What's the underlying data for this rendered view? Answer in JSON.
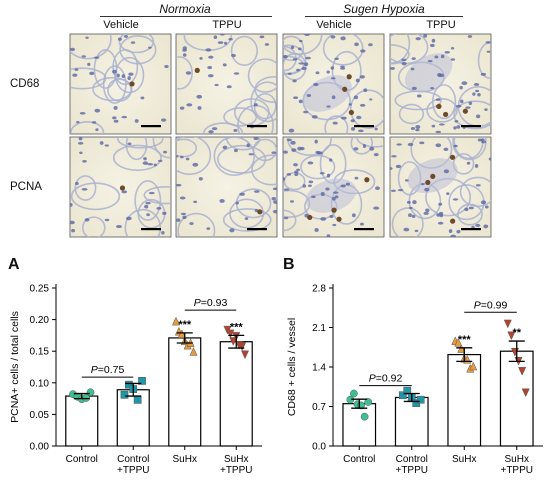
{
  "top": {
    "conditions": [
      "Normoxia",
      "Sugen Hypoxia"
    ],
    "groups": [
      "Vehicle",
      "TPPU",
      "Vehicle",
      "TPPU"
    ],
    "stains": [
      "CD68",
      "PCNA"
    ]
  },
  "chart_data": [
    {
      "panel": "A",
      "type": "bar",
      "categories": [
        "Control",
        "Control\n+TPPU",
        "SuHx",
        "SuHx\n+TPPU"
      ],
      "values": [
        0.079,
        0.089,
        0.171,
        0.165
      ],
      "errors": [
        0.004,
        0.01,
        0.008,
        0.01
      ],
      "points": [
        [
          0.082,
          0.078,
          0.074,
          0.076,
          0.085
        ],
        [
          0.081,
          0.097,
          0.09,
          0.073,
          0.103
        ],
        [
          0.197,
          0.181,
          0.177,
          0.166,
          0.159,
          0.163,
          0.149
        ],
        [
          0.184,
          0.178,
          0.166,
          0.174,
          0.16,
          0.158,
          0.145
        ]
      ],
      "point_colors": [
        "#3dbf95",
        "#1f97a8",
        "#e79a3e",
        "#b5442e"
      ],
      "point_markers": [
        "circle",
        "square",
        "triangle-up",
        "triangle-down"
      ],
      "significance": [
        "",
        "",
        "***",
        "***"
      ],
      "comparisons": [
        {
          "from": 0,
          "to": 1,
          "label": "P=0.75",
          "y": 0.109
        },
        {
          "from": 2,
          "to": 3,
          "label": "P=0.93",
          "y": 0.215
        }
      ],
      "ylabel": "PCNA+ cells / total cells",
      "ylim": [
        0,
        0.25
      ],
      "yticks": [
        "0.00",
        "0.05",
        "0.10",
        "0.15",
        "0.20",
        "0.25"
      ]
    },
    {
      "panel": "B",
      "type": "bar",
      "categories": [
        "Control",
        "Control\n+TPPU",
        "SuHx",
        "SuHx\n+TPPU"
      ],
      "values": [
        0.75,
        0.86,
        1.62,
        1.68
      ],
      "errors": [
        0.08,
        0.07,
        0.12,
        0.18
      ],
      "points": [
        [
          0.82,
          0.93,
          0.74,
          0.72,
          0.52,
          0.78
        ],
        [
          0.9,
          0.98,
          0.86,
          0.76,
          0.82
        ],
        [
          1.86,
          1.83,
          1.72,
          1.55,
          1.53,
          1.37,
          1.41
        ],
        [
          2.17,
          1.96,
          1.67,
          1.51,
          1.33,
          0.95
        ]
      ],
      "point_colors": [
        "#3dbf95",
        "#1f97a8",
        "#e79a3e",
        "#b5442e"
      ],
      "point_markers": [
        "circle",
        "square",
        "triangle-up",
        "triangle-down"
      ],
      "significance": [
        "",
        "",
        "***",
        "**"
      ],
      "comparisons": [
        {
          "from": 0,
          "to": 1,
          "label": "P=0.92",
          "y": 1.07
        },
        {
          "from": 2,
          "to": 3,
          "label": "P=0.99",
          "y": 2.37
        }
      ],
      "ylabel": "CD68 + cells / vessel",
      "ylim": [
        0,
        2.8
      ],
      "yticks": [
        "0.0",
        "0.7",
        "1.4",
        "2.1",
        "2.8"
      ]
    }
  ]
}
